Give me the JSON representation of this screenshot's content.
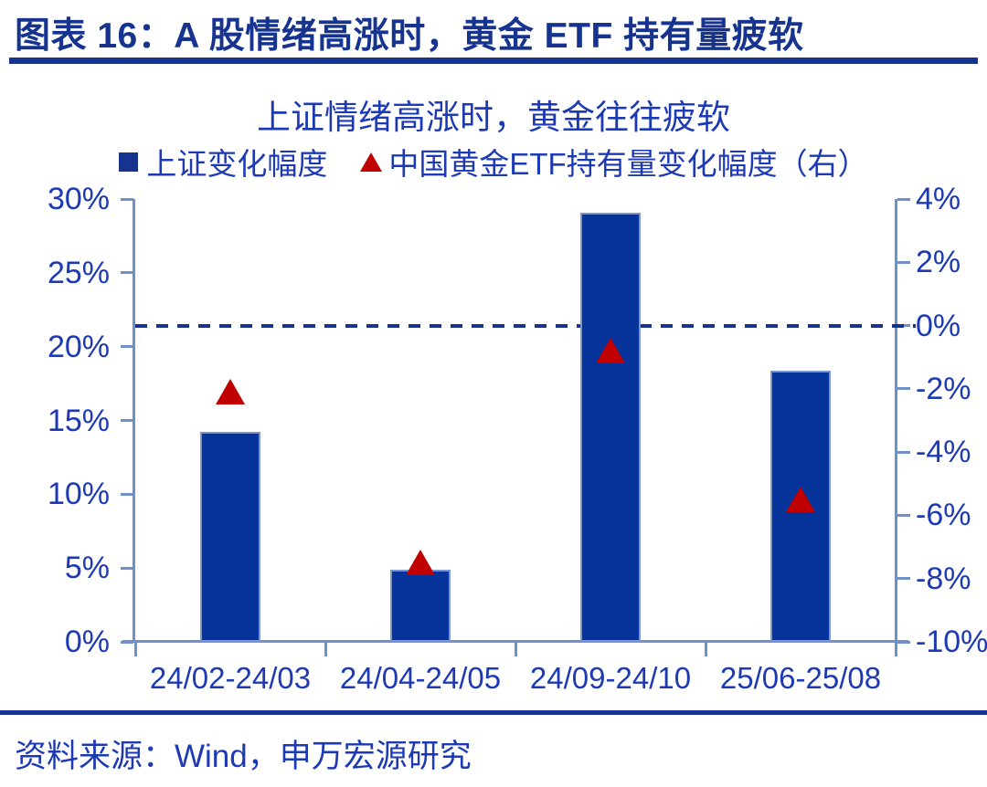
{
  "header": {
    "title": "图表 16：A 股情绪高涨时，黄金 ETF 持有量疲软"
  },
  "source": {
    "label": "资料来源：Wind，申万宏源研究"
  },
  "colors": {
    "navy": "#16338f",
    "chart_text": "#1d3ab4",
    "bar_fill": "#05339a",
    "bar_border": "#7b96cf",
    "axis_line": "#7090c8",
    "marker_red": "#c00000",
    "background": "#ffffff"
  },
  "chart_data": {
    "type": "bar",
    "title": "上证情绪高涨时，黄金往往疲软",
    "categories": [
      "24/02-24/03",
      "24/04-24/05",
      "24/09-24/10",
      "25/06-25/08"
    ],
    "series": [
      {
        "name": "上证变化幅度",
        "type": "bar",
        "axis": "left",
        "values": [
          14.2,
          4.9,
          29.1,
          18.4
        ]
      },
      {
        "name": "中国黄金ETF持有量变化幅度（右）",
        "type": "triangle-marker",
        "axis": "right",
        "values": [
          -2.1,
          -7.5,
          -0.8,
          -5.5
        ]
      }
    ],
    "left_axis": {
      "min": 0,
      "max": 30,
      "ticks": [
        "30%",
        "25%",
        "20%",
        "15%",
        "10%",
        "5%",
        "0%"
      ]
    },
    "right_axis": {
      "min": -10,
      "max": 4,
      "ticks": [
        "4%",
        "2%",
        "0%",
        "-2%",
        "-4%",
        "-6%",
        "-8%",
        "-10%"
      ]
    },
    "reference_line": {
      "axis": "right",
      "value": 0,
      "style": "dashed"
    },
    "legend_position": "top",
    "grid": false
  }
}
